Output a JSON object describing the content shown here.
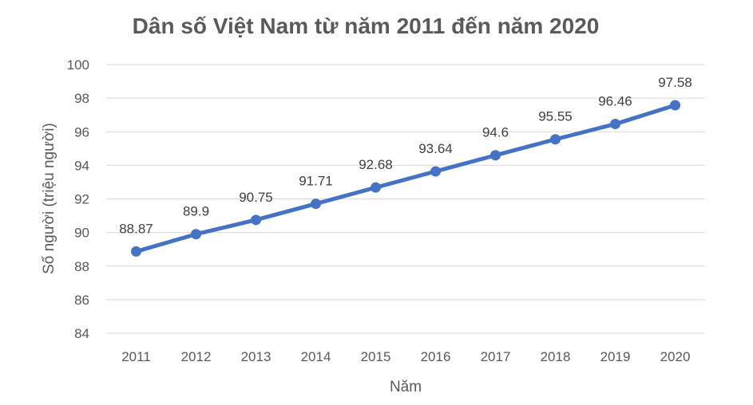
{
  "chart_data": {
    "type": "line",
    "title": "Dân số Việt Nam từ năm 2011 đến năm 2020",
    "xlabel": "Năm",
    "ylabel": "Số người (triệu người)",
    "categories": [
      "2011",
      "2012",
      "2013",
      "2014",
      "2015",
      "2016",
      "2017",
      "2018",
      "2019",
      "2020"
    ],
    "series": [
      {
        "values": [
          88.87,
          89.9,
          90.75,
          91.71,
          92.68,
          93.64,
          94.6,
          95.55,
          96.46,
          97.58
        ],
        "labels": [
          "88.87",
          "89.9",
          "90.75",
          "91.71",
          "92.68",
          "93.64",
          "94.6",
          "95.55",
          "96.46",
          "97.58"
        ]
      }
    ],
    "ylim": [
      84,
      100
    ],
    "yticks": [
      84,
      86,
      88,
      90,
      92,
      94,
      96,
      98,
      100
    ],
    "ytick_labels": [
      "84",
      "86",
      "88",
      "90",
      "92",
      "94",
      "96",
      "98",
      "100"
    ],
    "grid": true,
    "legend": "none",
    "line_color": "#4472c4"
  }
}
